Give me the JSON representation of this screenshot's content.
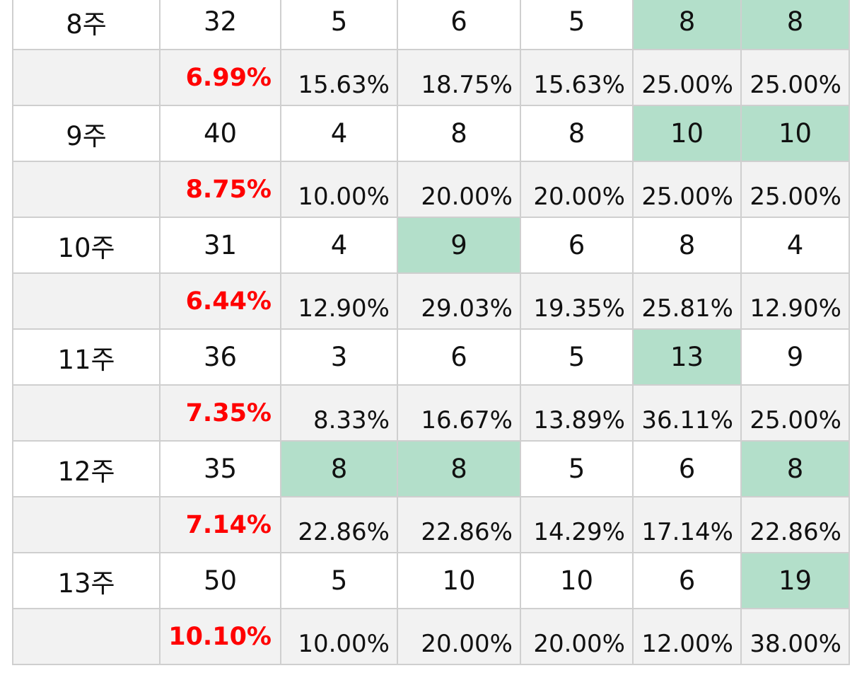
{
  "colors": {
    "highlight": "#b3dfca",
    "total_percent_text": "#ff0000",
    "percent_row_bg": "#f2f2f2",
    "border": "#cfcfcf"
  },
  "rows": [
    {
      "week": "8주",
      "total": "32",
      "counts": [
        "5",
        "6",
        "5",
        "8",
        "8"
      ],
      "highlighted": [
        false,
        false,
        false,
        true,
        true
      ],
      "total_percent": "6.99%",
      "percents": [
        "15.63%",
        "18.75%",
        "15.63%",
        "25.00%",
        "25.00%"
      ]
    },
    {
      "week": "9주",
      "total": "40",
      "counts": [
        "4",
        "8",
        "8",
        "10",
        "10"
      ],
      "highlighted": [
        false,
        false,
        false,
        true,
        true
      ],
      "total_percent": "8.75%",
      "percents": [
        "10.00%",
        "20.00%",
        "20.00%",
        "25.00%",
        "25.00%"
      ]
    },
    {
      "week": "10주",
      "total": "31",
      "counts": [
        "4",
        "9",
        "6",
        "8",
        "4"
      ],
      "highlighted": [
        false,
        true,
        false,
        false,
        false
      ],
      "total_percent": "6.44%",
      "percents": [
        "12.90%",
        "29.03%",
        "19.35%",
        "25.81%",
        "12.90%"
      ]
    },
    {
      "week": "11주",
      "total": "36",
      "counts": [
        "3",
        "6",
        "5",
        "13",
        "9"
      ],
      "highlighted": [
        false,
        false,
        false,
        true,
        false
      ],
      "total_percent": "7.35%",
      "percents": [
        "8.33%",
        "16.67%",
        "13.89%",
        "36.11%",
        "25.00%"
      ]
    },
    {
      "week": "12주",
      "total": "35",
      "counts": [
        "8",
        "8",
        "5",
        "6",
        "8"
      ],
      "highlighted": [
        true,
        true,
        false,
        false,
        true
      ],
      "total_percent": "7.14%",
      "percents": [
        "22.86%",
        "22.86%",
        "14.29%",
        "17.14%",
        "22.86%"
      ]
    },
    {
      "week": "13주",
      "total": "50",
      "counts": [
        "5",
        "10",
        "10",
        "6",
        "19"
      ],
      "highlighted": [
        false,
        false,
        false,
        false,
        true
      ],
      "total_percent": "10.10%",
      "percents": [
        "10.00%",
        "20.00%",
        "20.00%",
        "12.00%",
        "38.00%"
      ]
    }
  ]
}
